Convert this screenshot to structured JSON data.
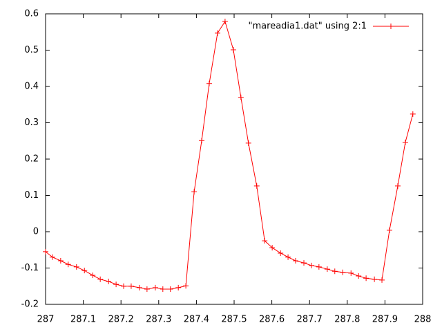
{
  "chart_data": {
    "type": "line",
    "x": [
      287.0,
      287.018,
      287.04,
      287.06,
      287.082,
      287.103,
      287.125,
      287.145,
      287.167,
      287.187,
      287.207,
      287.227,
      287.249,
      287.269,
      287.291,
      287.311,
      287.331,
      287.352,
      287.372,
      287.394,
      287.414,
      287.434,
      287.456,
      287.476,
      287.498,
      287.518,
      287.538,
      287.56,
      287.581,
      287.601,
      287.623,
      287.643,
      287.663,
      287.685,
      287.705,
      287.725,
      287.747,
      287.767,
      287.788,
      287.81,
      287.83,
      287.85,
      287.872,
      287.892,
      287.912,
      287.934,
      287.954,
      287.974
    ],
    "series": [
      {
        "name": "\"mareadia1.dat\" using 2:1",
        "color": "#ff0000",
        "values": [
          -0.055,
          -0.07,
          -0.08,
          -0.09,
          -0.097,
          -0.107,
          -0.12,
          -0.131,
          -0.137,
          -0.145,
          -0.15,
          -0.15,
          -0.154,
          -0.158,
          -0.154,
          -0.158,
          -0.158,
          -0.154,
          -0.149,
          0.11,
          0.251,
          0.408,
          0.547,
          0.579,
          0.501,
          0.37,
          0.244,
          0.126,
          -0.025,
          -0.044,
          -0.059,
          -0.07,
          -0.08,
          -0.086,
          -0.093,
          -0.097,
          -0.103,
          -0.109,
          -0.112,
          -0.114,
          -0.122,
          -0.128,
          -0.131,
          -0.133,
          0.004,
          0.126,
          0.246,
          0.324
        ]
      }
    ],
    "xlim": [
      287,
      288
    ],
    "xticks": [
      287,
      287.1,
      287.2,
      287.3,
      287.4,
      287.5,
      287.6,
      287.7,
      287.8,
      287.9,
      288
    ],
    "ylim": [
      -0.2,
      0.6
    ],
    "yticks": [
      -0.2,
      -0.1,
      0,
      0.1,
      0.2,
      0.3,
      0.4,
      0.5,
      0.6
    ],
    "legend": "top-right",
    "grid": false
  }
}
